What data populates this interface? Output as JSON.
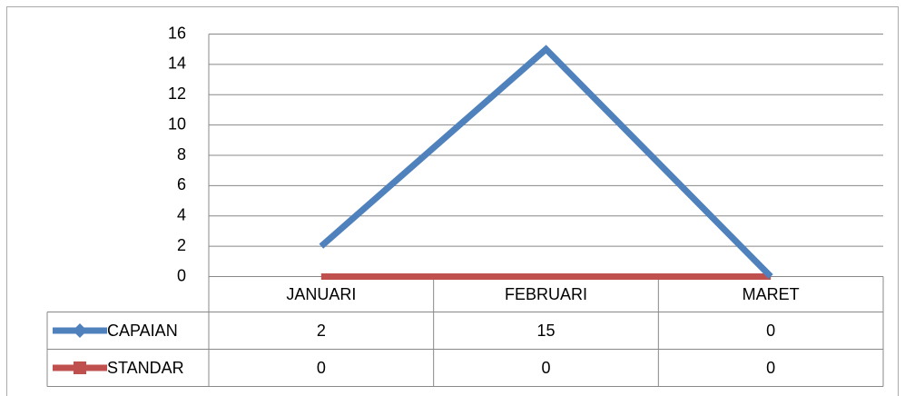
{
  "chart_data": {
    "type": "line",
    "categories": [
      "JANUARI",
      "FEBRUARI",
      "MARET"
    ],
    "series": [
      {
        "name": "CAPAIAN",
        "color": "#4f81bd",
        "values": [
          2,
          15,
          0
        ]
      },
      {
        "name": "STANDAR",
        "color": "#c0504d",
        "values": [
          0,
          0,
          0
        ]
      }
    ],
    "ylim": [
      0,
      16
    ],
    "yticks": [
      0,
      2,
      4,
      6,
      8,
      10,
      12,
      14,
      16
    ],
    "grid": true
  }
}
